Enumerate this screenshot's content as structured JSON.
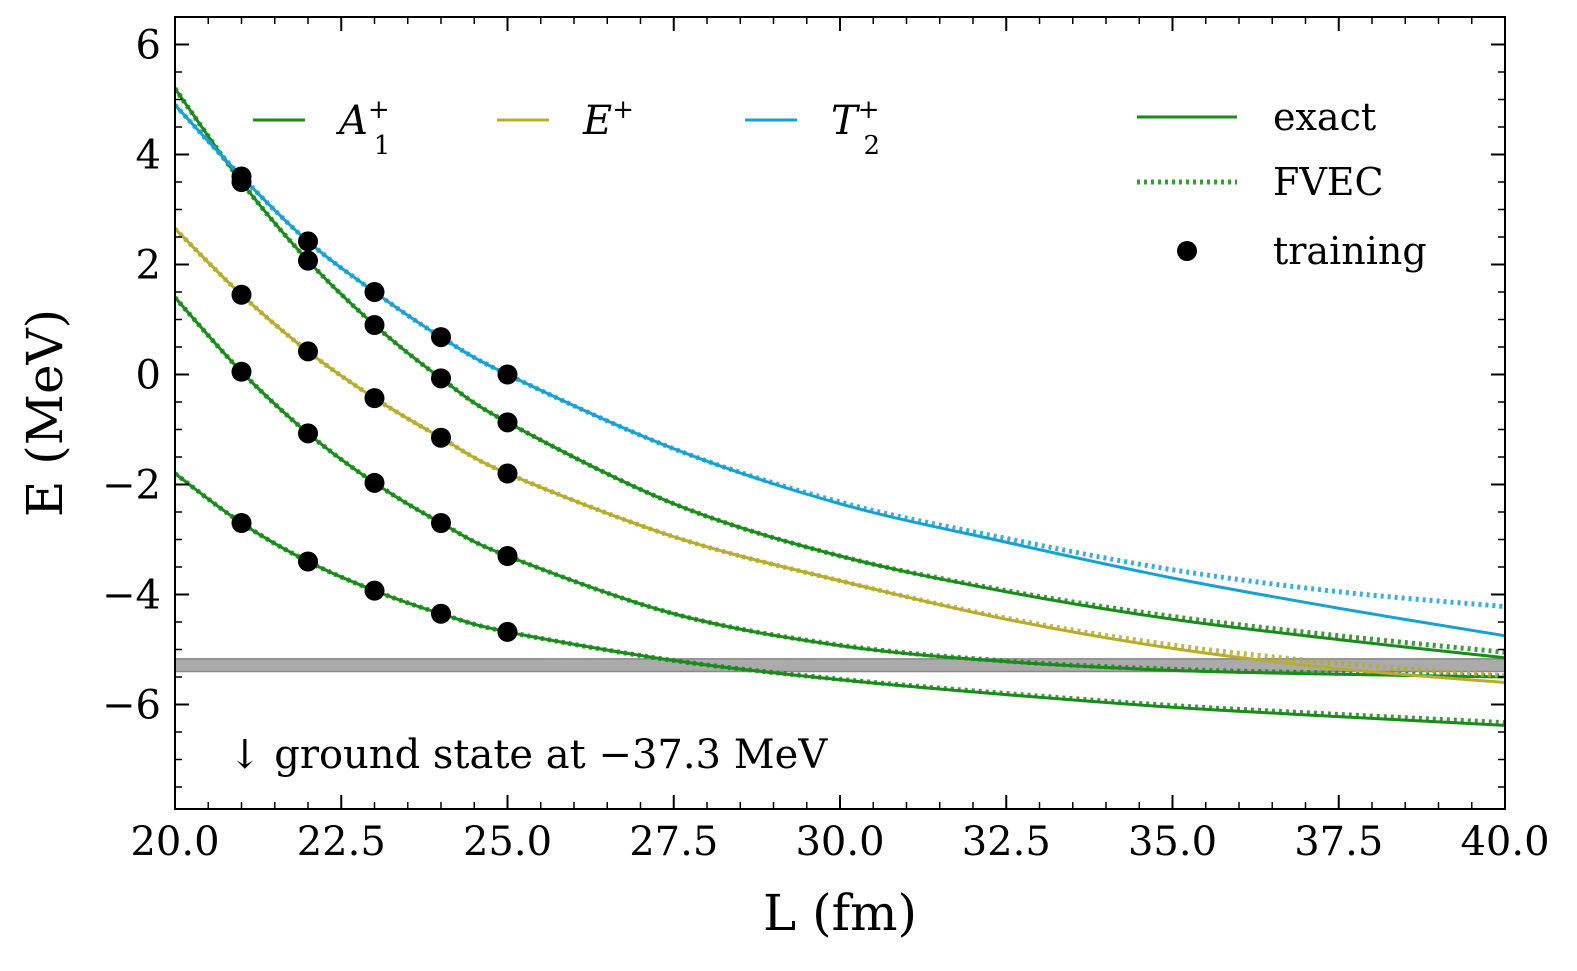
{
  "chart_data": {
    "type": "line",
    "xlabel": "L (fm)",
    "ylabel": "E (MeV)",
    "xlim": [
      20.0,
      40.0
    ],
    "ylim": [
      -7.9,
      6.5
    ],
    "xticks": [
      "20.0",
      "22.5",
      "25.0",
      "27.5",
      "30.0",
      "32.5",
      "35.0",
      "37.5",
      "40.0"
    ],
    "yticks": [
      "6",
      "4",
      "2",
      "0",
      "−2",
      "−4",
      "−6"
    ],
    "grid": false,
    "colors": {
      "A1": "#1a8a1a",
      "E": "#b5ac30",
      "T2": "#1aa0d0",
      "band": "#aaaaaa",
      "points": "#000000"
    },
    "legend_irreps": {
      "placement": "top-left",
      "entries": [
        {
          "key": "A1",
          "base": "A",
          "sub": "1",
          "sup": "+"
        },
        {
          "key": "E",
          "base": "E",
          "sub": "",
          "sup": "+"
        },
        {
          "key": "T2",
          "base": "T",
          "sub": "2",
          "sup": "+"
        }
      ]
    },
    "legend_styles": {
      "placement": "top-right",
      "entries": [
        {
          "style": "solid",
          "label": "exact"
        },
        {
          "style": "dotted",
          "label": "FVEC"
        },
        {
          "style": "marker",
          "label": "training"
        }
      ]
    },
    "series": [
      {
        "irrep": "A1",
        "exact": [
          [
            20,
            -1.8
          ],
          [
            21,
            -2.7
          ],
          [
            22,
            -3.4
          ],
          [
            23,
            -3.93
          ],
          [
            24,
            -4.35
          ],
          [
            25,
            -4.68
          ],
          [
            27.5,
            -5.2
          ],
          [
            30,
            -5.55
          ],
          [
            32.5,
            -5.82
          ],
          [
            35,
            -6.05
          ],
          [
            37.5,
            -6.22
          ],
          [
            40,
            -6.38
          ]
        ],
        "fvec": [
          [
            20,
            -1.8
          ],
          [
            21,
            -2.7
          ],
          [
            22,
            -3.4
          ],
          [
            23,
            -3.93
          ],
          [
            24,
            -4.35
          ],
          [
            25,
            -4.68
          ],
          [
            27.5,
            -5.2
          ],
          [
            30,
            -5.54
          ],
          [
            32.5,
            -5.8
          ],
          [
            35,
            -6.02
          ],
          [
            37.5,
            -6.18
          ],
          [
            40,
            -6.33
          ]
        ]
      },
      {
        "irrep": "A1",
        "exact": [
          [
            20,
            1.4
          ],
          [
            21,
            0.05
          ],
          [
            22,
            -1.07
          ],
          [
            23,
            -1.97
          ],
          [
            24,
            -2.7
          ],
          [
            25,
            -3.3
          ],
          [
            27.5,
            -4.35
          ],
          [
            30,
            -4.93
          ],
          [
            32.5,
            -5.22
          ],
          [
            35,
            -5.38
          ],
          [
            37.5,
            -5.45
          ],
          [
            40,
            -5.5
          ]
        ],
        "fvec": [
          [
            20,
            1.4
          ],
          [
            21,
            0.05
          ],
          [
            22,
            -1.07
          ],
          [
            23,
            -1.97
          ],
          [
            24,
            -2.7
          ],
          [
            25,
            -3.3
          ],
          [
            27.5,
            -4.35
          ],
          [
            30,
            -4.92
          ],
          [
            32.5,
            -5.21
          ],
          [
            35,
            -5.36
          ],
          [
            37.5,
            -5.43
          ],
          [
            40,
            -5.48
          ]
        ]
      },
      {
        "irrep": "E",
        "exact": [
          [
            20,
            2.65
          ],
          [
            21,
            1.45
          ],
          [
            22,
            0.42
          ],
          [
            23,
            -0.43
          ],
          [
            24,
            -1.15
          ],
          [
            25,
            -1.8
          ],
          [
            27.5,
            -2.95
          ],
          [
            30,
            -3.75
          ],
          [
            32.5,
            -4.45
          ],
          [
            35,
            -4.98
          ],
          [
            37.5,
            -5.35
          ],
          [
            40,
            -5.6
          ]
        ],
        "fvec": [
          [
            20,
            2.65
          ],
          [
            21,
            1.45
          ],
          [
            22,
            0.42
          ],
          [
            23,
            -0.43
          ],
          [
            24,
            -1.15
          ],
          [
            25,
            -1.8
          ],
          [
            27.5,
            -2.95
          ],
          [
            30,
            -3.75
          ],
          [
            32.5,
            -4.43
          ],
          [
            35,
            -4.92
          ],
          [
            37.5,
            -5.25
          ],
          [
            40,
            -5.48
          ]
        ]
      },
      {
        "irrep": "A1",
        "exact": [
          [
            20,
            5.2
          ],
          [
            21,
            3.5
          ],
          [
            22,
            2.07
          ],
          [
            23,
            0.9
          ],
          [
            24,
            -0.07
          ],
          [
            25,
            -0.87
          ],
          [
            27.5,
            -2.35
          ],
          [
            30,
            -3.3
          ],
          [
            32.5,
            -3.95
          ],
          [
            35,
            -4.45
          ],
          [
            37.5,
            -4.82
          ],
          [
            40,
            -5.15
          ]
        ],
        "fvec": [
          [
            20,
            5.2
          ],
          [
            21,
            3.5
          ],
          [
            22,
            2.07
          ],
          [
            23,
            0.9
          ],
          [
            24,
            -0.07
          ],
          [
            25,
            -0.87
          ],
          [
            27.5,
            -2.35
          ],
          [
            30,
            -3.3
          ],
          [
            32.5,
            -3.93
          ],
          [
            35,
            -4.4
          ],
          [
            37.5,
            -4.75
          ],
          [
            40,
            -5.05
          ]
        ]
      },
      {
        "irrep": "T2",
        "exact": [
          [
            20,
            4.9
          ],
          [
            21,
            3.6
          ],
          [
            22,
            2.42
          ],
          [
            23,
            1.5
          ],
          [
            24,
            0.68
          ],
          [
            25,
            0
          ],
          [
            27.5,
            -1.35
          ],
          [
            30,
            -2.35
          ],
          [
            32.5,
            -3.05
          ],
          [
            35,
            -3.7
          ],
          [
            37.5,
            -4.25
          ],
          [
            40,
            -4.75
          ]
        ],
        "fvec": [
          [
            20,
            4.9
          ],
          [
            21,
            3.6
          ],
          [
            22,
            2.42
          ],
          [
            23,
            1.5
          ],
          [
            24,
            0.68
          ],
          [
            25,
            0
          ],
          [
            27.5,
            -1.35
          ],
          [
            30,
            -2.32
          ],
          [
            32.5,
            -2.98
          ],
          [
            35,
            -3.55
          ],
          [
            37.5,
            -3.95
          ],
          [
            40,
            -4.22
          ]
        ]
      }
    ],
    "training_points": [
      [
        21,
        3.6
      ],
      [
        21,
        3.5
      ],
      [
        21,
        1.45
      ],
      [
        21,
        0.05
      ],
      [
        21,
        -2.7
      ],
      [
        22,
        2.42
      ],
      [
        22,
        2.07
      ],
      [
        22,
        0.42
      ],
      [
        22,
        -1.07
      ],
      [
        22,
        -3.4
      ],
      [
        23,
        1.5
      ],
      [
        23,
        0.9
      ],
      [
        23,
        -0.43
      ],
      [
        23,
        -1.97
      ],
      [
        23,
        -3.93
      ],
      [
        24,
        0.68
      ],
      [
        24,
        -0.07
      ],
      [
        24,
        -1.15
      ],
      [
        24,
        -2.7
      ],
      [
        24,
        -4.35
      ],
      [
        25,
        0
      ],
      [
        25,
        -0.87
      ],
      [
        25,
        -1.8
      ],
      [
        25,
        -3.3
      ],
      [
        25,
        -4.68
      ]
    ],
    "band": {
      "ymin": -5.4,
      "ymax": -5.17
    },
    "annotation": "↓ ground state at −37.3 MeV"
  }
}
